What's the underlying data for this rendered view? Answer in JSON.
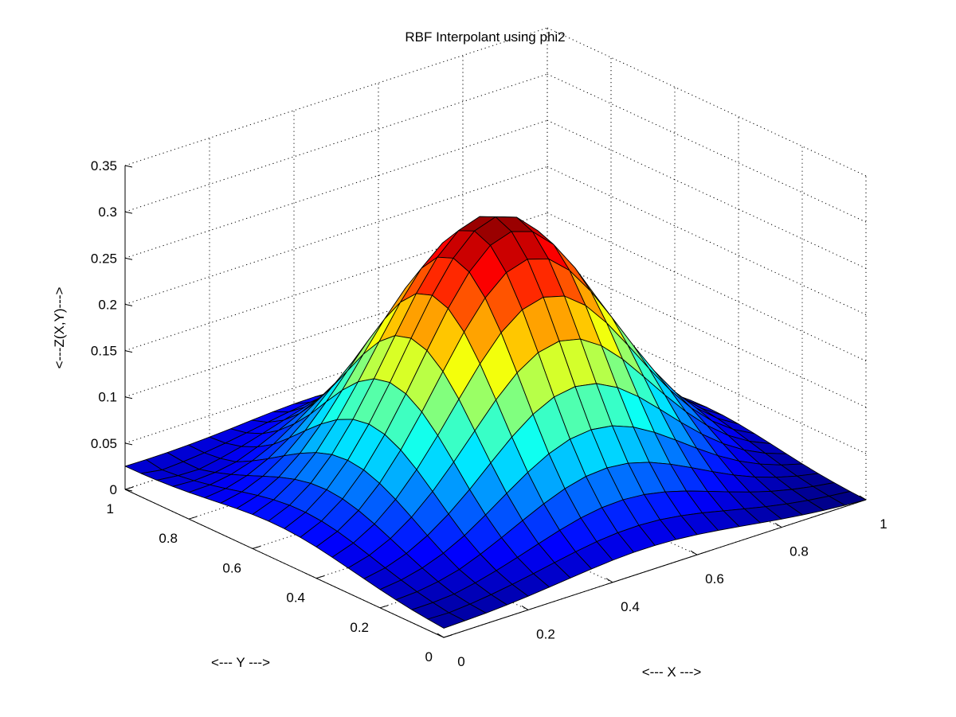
{
  "chart_data": {
    "type": "surface",
    "title": "RBF Interpolant using phi2",
    "xlabel": "<--- X --->",
    "ylabel": "<--- Y --->",
    "zlabel": "<---Z(X,Y)--->",
    "xlim": [
      0,
      1
    ],
    "ylim": [
      0,
      1
    ],
    "zlim": [
      0,
      0.35
    ],
    "x_ticks": [
      "0",
      "0.2",
      "0.4",
      "0.6",
      "0.8",
      "1"
    ],
    "y_ticks": [
      "0",
      "0.2",
      "0.4",
      "0.6",
      "0.8",
      "1"
    ],
    "z_ticks": [
      "0",
      "0.05",
      "0.1",
      "0.15",
      "0.2",
      "0.25",
      "0.3",
      "0.35"
    ],
    "grid": true,
    "colormap": "jet",
    "grid_n": 21,
    "corner_values": {
      "x0_y0": 0.01,
      "x1_y0": 0.0,
      "x0_y1": 0.025,
      "x1_y1": 0.0
    },
    "peak": {
      "x": 0.5,
      "y": 0.5,
      "z": 0.3
    }
  }
}
